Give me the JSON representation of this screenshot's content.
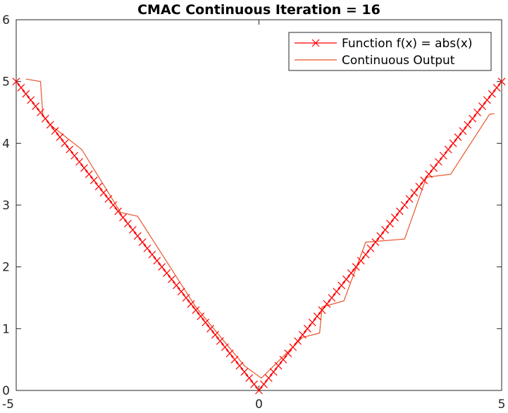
{
  "chart_data": {
    "type": "line",
    "title": "CMAC Continuous Iteration = 16",
    "xlabel": "",
    "ylabel": "",
    "xlim": [
      -5,
      5
    ],
    "ylim": [
      0,
      6
    ],
    "x_ticks": [
      -5,
      0,
      5
    ],
    "x_tick_labels": [
      "-5",
      "0",
      "5"
    ],
    "y_ticks": [
      0,
      1,
      2,
      3,
      4,
      5,
      6
    ],
    "y_tick_labels": [
      "0",
      "1",
      "2",
      "3",
      "4",
      "5",
      "6"
    ],
    "grid": false,
    "legend_position": "top-right",
    "series": [
      {
        "name": "Function f(x) = abs(x)",
        "color": "#ff0000",
        "marker": "x",
        "marker_count": 101,
        "x_range": [
          -5,
          5
        ],
        "function": "abs(x)"
      },
      {
        "name": "Continuous Output",
        "color": "#e8552a",
        "marker": "none",
        "x": [
          -4.8,
          -4.5,
          -4.45,
          -4.3,
          -3.65,
          -2.85,
          -2.5,
          -1.3,
          -0.3,
          0.05,
          0.9,
          1.25,
          1.3,
          1.75,
          2.2,
          3.0,
          3.45,
          3.95,
          4.75,
          4.85
        ],
        "y": [
          5.04,
          5.0,
          4.45,
          4.3,
          3.9,
          2.88,
          2.82,
          1.35,
          0.4,
          0.2,
          0.86,
          0.93,
          1.35,
          1.45,
          2.4,
          2.45,
          3.45,
          3.5,
          4.47,
          4.48
        ]
      }
    ]
  }
}
